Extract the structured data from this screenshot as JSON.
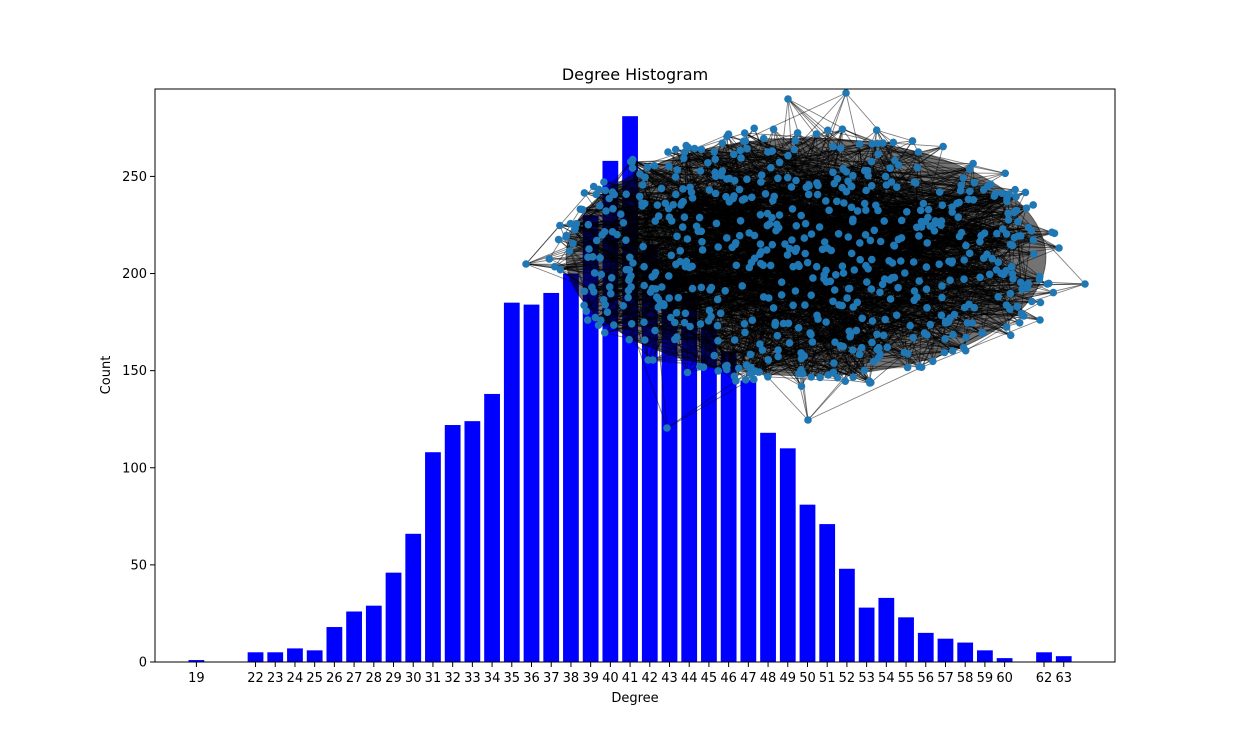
{
  "chart_data": {
    "type": "bar",
    "title": "Degree Histogram",
    "xlabel": "Degree",
    "ylabel": "Count",
    "ylim": [
      0,
      295
    ],
    "yticks": [
      0,
      50,
      100,
      150,
      200,
      250
    ],
    "grid": false,
    "categories": [
      19,
      22,
      23,
      24,
      25,
      26,
      27,
      28,
      29,
      30,
      31,
      32,
      33,
      34,
      35,
      36,
      37,
      38,
      39,
      40,
      41,
      42,
      43,
      44,
      45,
      46,
      47,
      48,
      49,
      50,
      51,
      52,
      53,
      54,
      55,
      56,
      57,
      58,
      59,
      60,
      62,
      63
    ],
    "values": [
      1,
      5,
      5,
      7,
      6,
      18,
      26,
      29,
      46,
      66,
      108,
      122,
      124,
      138,
      185,
      184,
      190,
      200,
      230,
      258,
      281,
      215,
      200,
      190,
      175,
      160,
      145,
      118,
      110,
      81,
      71,
      48,
      28,
      33,
      23,
      15,
      12,
      10,
      6,
      2,
      5,
      3
    ],
    "bar_color": "#0000ff",
    "inset_network": {
      "node_color": "#1f77b4",
      "edge_color": "#000000"
    }
  }
}
